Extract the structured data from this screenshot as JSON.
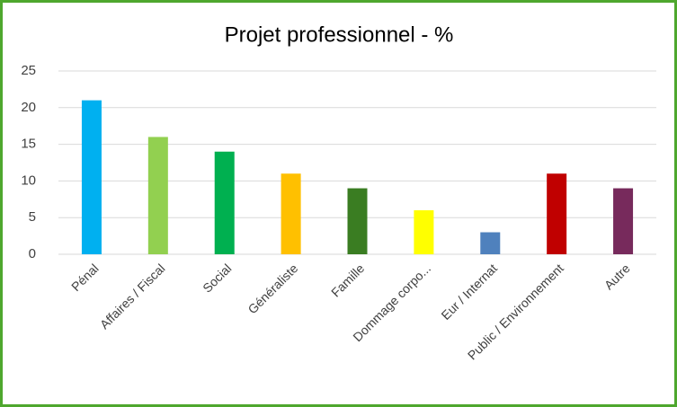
{
  "chart_data": {
    "type": "bar",
    "title": "Projet professionnel - %",
    "categories": [
      "Pénal",
      "Affaires / Fiscal",
      "Social",
      "Généraliste",
      "Famille",
      "Dommage corpo...",
      "Eur / Internat",
      "Public / Environnement",
      "Autre"
    ],
    "values": [
      21,
      16,
      14,
      11,
      9,
      6,
      3,
      11,
      9
    ],
    "colors": [
      "#00b0f0",
      "#92d050",
      "#00b050",
      "#ffc000",
      "#3a7d22",
      "#ffff00",
      "#4f81bd",
      "#c00000",
      "#772a5c"
    ],
    "ylim": [
      0,
      25
    ],
    "yticks": [
      0,
      5,
      10,
      15,
      20,
      25
    ],
    "grid": true
  }
}
